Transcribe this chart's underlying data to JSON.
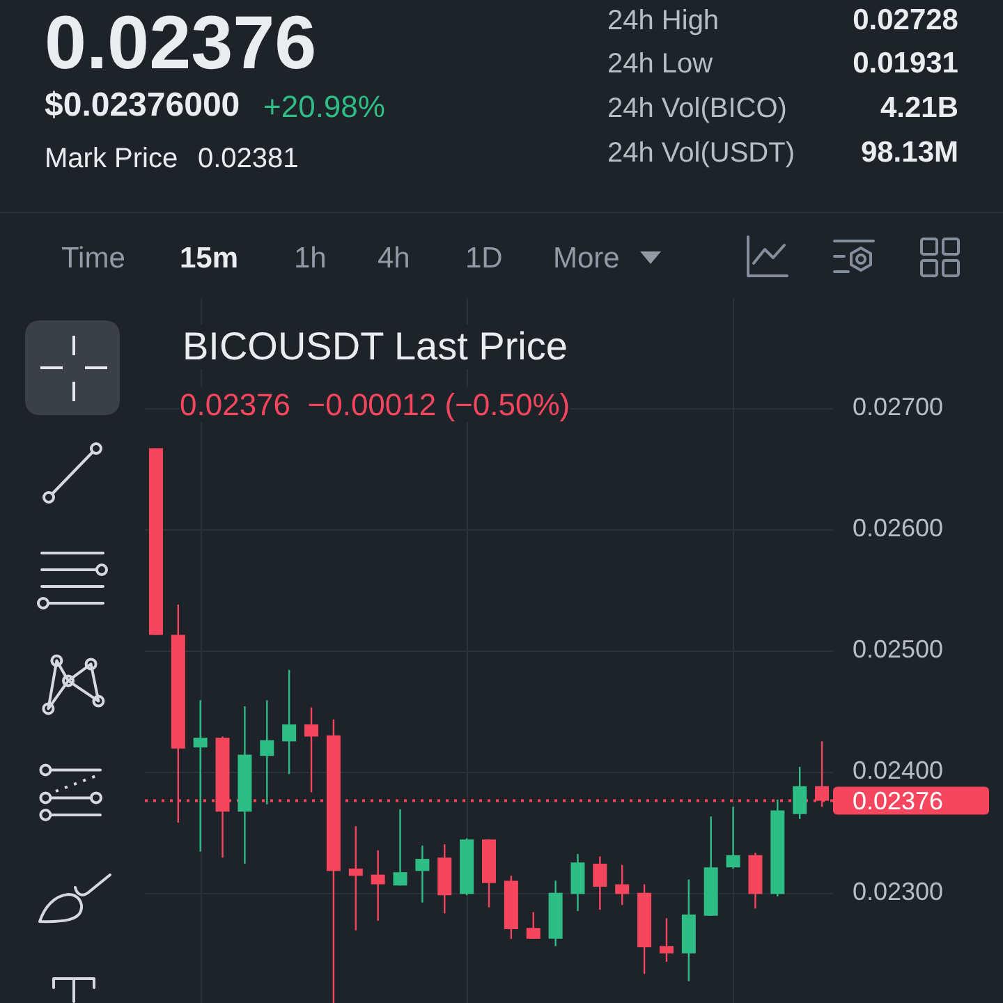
{
  "chart_data": {
    "type": "candlestick",
    "title": "BICOUSDT Last Price",
    "subtitle": "0.02376  −0.00012 (−0.50%)",
    "categories": [
      null,
      null,
      null,
      null,
      null,
      null,
      null,
      null,
      null,
      null,
      null,
      null,
      null,
      null,
      null,
      null,
      null,
      null,
      null,
      null,
      null,
      null,
      null,
      null,
      null,
      null,
      null,
      null,
      null,
      null,
      null
    ],
    "ohlc": [
      [
        0.02667,
        0.02667,
        0.02513,
        0.02513
      ],
      [
        0.02513,
        0.02538,
        0.02358,
        0.02419
      ],
      [
        0.0242,
        0.02459,
        0.02334,
        0.02428
      ],
      [
        0.02428,
        0.02429,
        0.02329,
        0.02367
      ],
      [
        0.02367,
        0.02454,
        0.02324,
        0.02414
      ],
      [
        0.02413,
        0.02459,
        0.02373,
        0.02426
      ],
      [
        0.02425,
        0.02484,
        0.02398,
        0.02439
      ],
      [
        0.02439,
        0.02453,
        0.02383,
        0.02429
      ],
      [
        0.0243,
        0.02443,
        0.02209,
        0.02318
      ],
      [
        0.0232,
        0.02355,
        0.02269,
        0.02314
      ],
      [
        0.02315,
        0.02335,
        0.02277,
        0.02307
      ],
      [
        0.02306,
        0.02369,
        0.02306,
        0.02317
      ],
      [
        0.02318,
        0.02339,
        0.02292,
        0.02328
      ],
      [
        0.02329,
        0.0234,
        0.02283,
        0.02298
      ],
      [
        0.02299,
        0.02345,
        0.02298,
        0.02344
      ],
      [
        0.02344,
        0.02344,
        0.02288,
        0.02308
      ],
      [
        0.0231,
        0.02314,
        0.02262,
        0.0227
      ],
      [
        0.02271,
        0.02284,
        0.02262,
        0.02262
      ],
      [
        0.02262,
        0.0231,
        0.02256,
        0.023
      ],
      [
        0.02299,
        0.02332,
        0.02285,
        0.02325
      ],
      [
        0.02324,
        0.0233,
        0.02286,
        0.02305
      ],
      [
        0.02307,
        0.02323,
        0.0229,
        0.02299
      ],
      [
        0.023,
        0.02307,
        0.02233,
        0.02255
      ],
      [
        0.02256,
        0.02279,
        0.02243,
        0.0225
      ],
      [
        0.0225,
        0.02311,
        0.02227,
        0.02282
      ],
      [
        0.02281,
        0.02363,
        0.02281,
        0.02321
      ],
      [
        0.02321,
        0.02371,
        0.0232,
        0.02331
      ],
      [
        0.02331,
        0.02333,
        0.02287,
        0.02299
      ],
      [
        0.02299,
        0.02377,
        0.02297,
        0.02368
      ],
      [
        0.02365,
        0.02404,
        0.02361,
        0.02388
      ],
      [
        0.02388,
        0.02425,
        0.02371,
        0.02376
      ]
    ],
    "colors": [
      "#f6465d",
      "#f6465d",
      "#2ebd85",
      "#f6465d",
      "#2ebd85",
      "#2ebd85",
      "#2ebd85",
      "#f6465d",
      "#f6465d",
      "#f6465d",
      "#f6465d",
      "#2ebd85",
      "#2ebd85",
      "#f6465d",
      "#2ebd85",
      "#f6465d",
      "#f6465d",
      "#f6465d",
      "#2ebd85",
      "#2ebd85",
      "#f6465d",
      "#f6465d",
      "#f6465d",
      "#f6465d",
      "#2ebd85",
      "#2ebd85",
      "#2ebd85",
      "#f6465d",
      "#2ebd85",
      "#2ebd85",
      "#f6465d"
    ],
    "ylim": [
      0.02209,
      0.02791
    ],
    "yticks": [
      {
        "value": 0.027,
        "label": "0.02700"
      },
      {
        "value": 0.026,
        "label": "0.02600"
      },
      {
        "value": 0.025,
        "label": "0.02500"
      },
      {
        "value": 0.024,
        "label": "0.02400"
      },
      {
        "value": 0.023,
        "label": "0.02300"
      }
    ],
    "ref_lines": [
      {
        "axis": "y",
        "value": 0.02376,
        "label": "0.02376",
        "color": "#f6465d",
        "line_style": "dotted"
      }
    ],
    "grid": true,
    "tick_labels": "y",
    "annotations": [
      "0.02376",
      "$0.02376000",
      "+20.98%",
      "Mark Price",
      "0.02381",
      "24h High",
      "0.02728",
      "24h Low",
      "0.01931",
      "24h Vol(BICO)",
      "4.21B",
      "24h Vol(USDT)",
      "98.13M",
      "Time",
      "15m",
      "1h",
      "4h",
      "1D",
      "More"
    ]
  }
}
